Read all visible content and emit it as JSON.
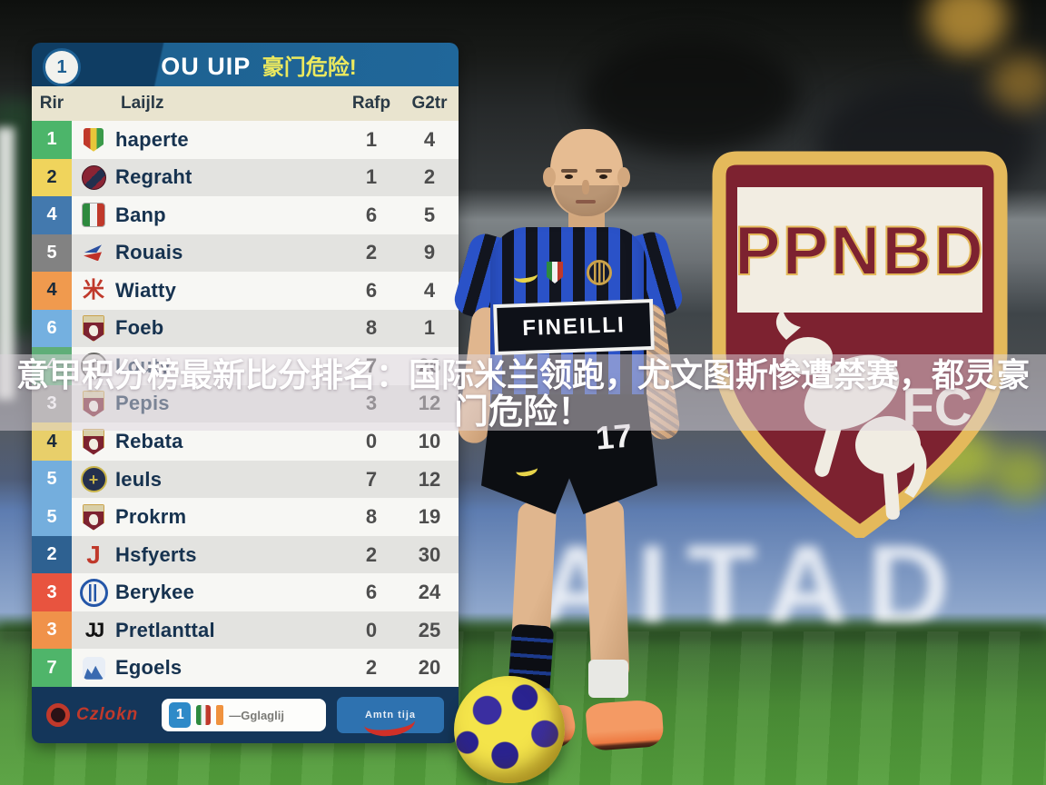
{
  "headline": {
    "line1": "意甲积分榜最新比分排名：国际米兰领跑，尤文图斯惨遭禁赛，都灵豪",
    "line2": "门危险！"
  },
  "chart_data": {
    "type": "table",
    "title": "OU UIP 豪门危险!",
    "columns": [
      "Rir",
      "Laijlz",
      "Rafp",
      "G2tr"
    ],
    "rows": [
      {
        "rank": "1",
        "team": "haperte",
        "rafp": "1",
        "gtr": "4"
      },
      {
        "rank": "2",
        "team": "Regraht",
        "rafp": "1",
        "gtr": "2"
      },
      {
        "rank": "4",
        "team": "Banp",
        "rafp": "6",
        "gtr": "5"
      },
      {
        "rank": "5",
        "team": "Rouais",
        "rafp": "2",
        "gtr": "9"
      },
      {
        "rank": "4",
        "team": "Wiatty",
        "rafp": "6",
        "gtr": "4"
      },
      {
        "rank": "6",
        "team": "Foeb",
        "rafp": "8",
        "gtr": "1"
      },
      {
        "rank": "4",
        "team": "Louty",
        "rafp": "7",
        "gtr": "26"
      },
      {
        "rank": "3",
        "team": "Pepis",
        "rafp": "3",
        "gtr": "12"
      },
      {
        "rank": "4",
        "team": "Rebata",
        "rafp": "0",
        "gtr": "10"
      },
      {
        "rank": "5",
        "team": "Ieuls",
        "rafp": "7",
        "gtr": "12"
      },
      {
        "rank": "5",
        "team": "Prokrm",
        "rafp": "8",
        "gtr": "19"
      },
      {
        "rank": "2",
        "team": "Hsfyerts",
        "rafp": "2",
        "gtr": "30"
      },
      {
        "rank": "3",
        "team": "Berykee",
        "rafp": "6",
        "gtr": "24"
      },
      {
        "rank": "3",
        "team": "Pretlanttal",
        "rafp": "0",
        "gtr": "25"
      },
      {
        "rank": "7",
        "team": "Egoels",
        "rafp": "2",
        "gtr": "20"
      }
    ]
  },
  "table": {
    "badge": "1",
    "title_latin": "OU UIP",
    "title_cjk": "豪门危险!",
    "row_styles": [
      {
        "rank_bg": "#4cb56a",
        "rank_fg": "#ffffff",
        "icon": "scudetto-stripes"
      },
      {
        "rank_bg": "#f0d45c",
        "rank_fg": "#1a2a3a",
        "icon": "round-crest-dark"
      },
      {
        "rank_bg": "#4379ae",
        "rank_fg": "#ffffff",
        "icon": "italy-flag"
      },
      {
        "rank_bg": "#828282",
        "rank_fg": "#ffffff",
        "icon": "red-blue-pennant"
      },
      {
        "rank_bg": "#f09a4e",
        "rank_fg": "#1a2a3a",
        "icon": "red-asterisk"
      },
      {
        "rank_bg": "#74b0e0",
        "rank_fg": "#ffffff",
        "icon": "torino-shield"
      },
      {
        "rank_bg": "#5fae78",
        "rank_fg": "#ffffff",
        "icon": "circle-t"
      },
      {
        "rank_bg": "#9a9a96",
        "rank_fg": "#ffffff",
        "icon": "torino-shield"
      },
      {
        "rank_bg": "#e8cf6a",
        "rank_fg": "#1a2a3a",
        "icon": "torino-shield"
      },
      {
        "rank_bg": "#74aedd",
        "rank_fg": "#ffffff",
        "icon": "circle-cross"
      },
      {
        "rank_bg": "#74aedd",
        "rank_fg": "#ffffff",
        "icon": "torino-shield"
      },
      {
        "rank_bg": "#2e6191",
        "rank_fg": "#ffffff",
        "icon": "red-j"
      },
      {
        "rank_bg": "#e8543f",
        "rank_fg": "#ffffff",
        "icon": "inter-circle"
      },
      {
        "rank_bg": "#f0924a",
        "rank_fg": "#ffffff",
        "icon": "juve-jj"
      },
      {
        "rank_bg": "#4fb56a",
        "rank_fg": "#ffffff",
        "icon": "castle-blue"
      }
    ],
    "footer": {
      "brand": "Czlokn",
      "center_badge": "1",
      "center_text": "—Gglaglij",
      "button_text": "Amtn tija"
    }
  },
  "player": {
    "sponsor": "FINEILLI",
    "shorts_number": "17"
  },
  "crest": {
    "wordmark": "PPNBD",
    "fc": "FC"
  },
  "background": {
    "board_text": "AITAD"
  },
  "colors": {
    "crest_maroon": "#7d2230",
    "crest_gold": "#e4b95b",
    "table_header_navy": "#1e6292",
    "table_footer_navy": "#14365a",
    "headline_white": "#ffffff",
    "title_yellow": "#ece95e",
    "jersey_blue": "#2a52c8",
    "pitch_green": "#4c8f37"
  }
}
